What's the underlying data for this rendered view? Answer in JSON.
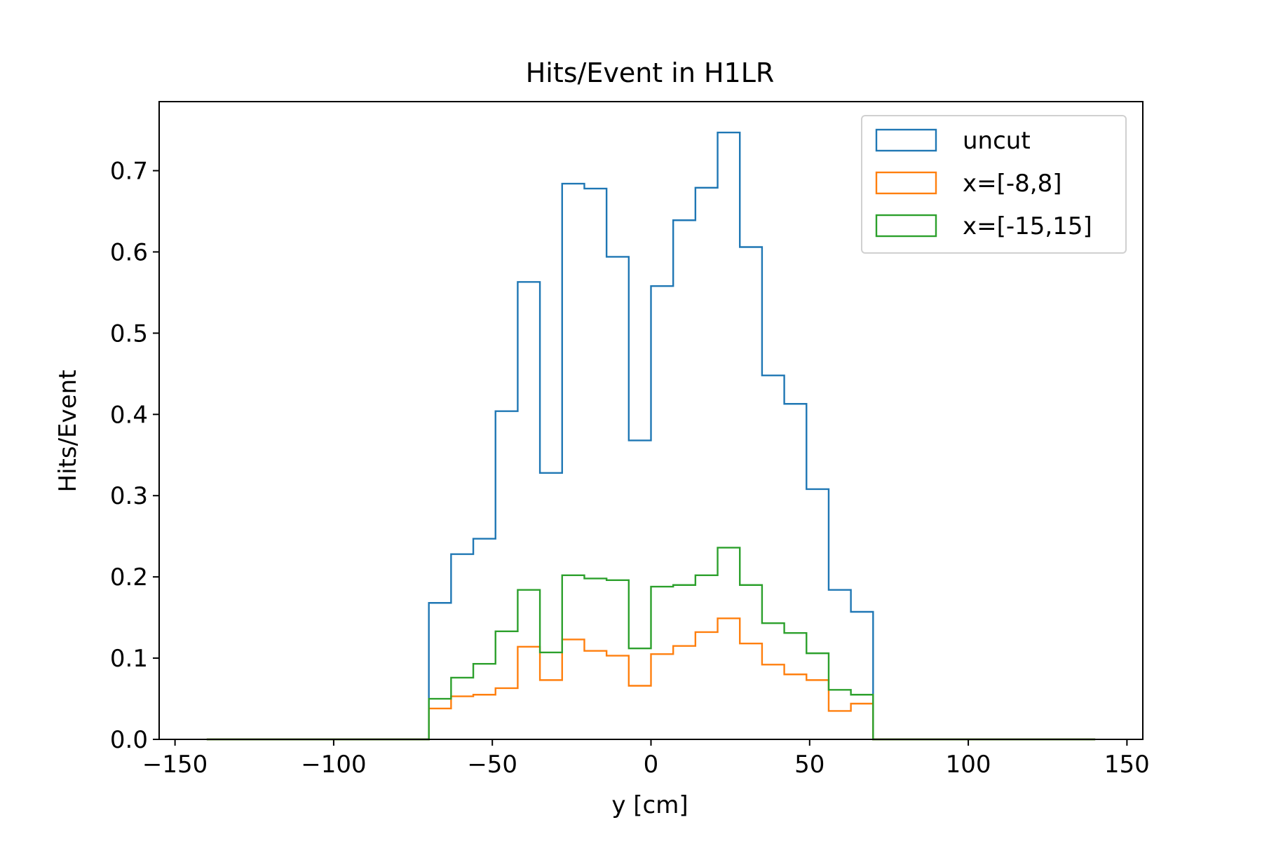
{
  "chart_data": {
    "type": "histogram",
    "title": "Hits/Event in H1LR",
    "xlabel": "y [cm]",
    "ylabel": "Hits/Event",
    "xlim": [
      -155,
      155
    ],
    "ylim": [
      0,
      0.785
    ],
    "xticks": [
      -150,
      -100,
      -50,
      0,
      50,
      100,
      150
    ],
    "xtick_labels": [
      "−150",
      "−100",
      "−50",
      "0",
      "50",
      "100",
      "150"
    ],
    "yticks": [
      0.0,
      0.1,
      0.2,
      0.3,
      0.4,
      0.5,
      0.6,
      0.7
    ],
    "ytick_labels": [
      "0.0",
      "0.1",
      "0.2",
      "0.3",
      "0.4",
      "0.5",
      "0.6",
      "0.7"
    ],
    "grid": false,
    "legend_position": "top-right",
    "bin_edges": [
      -140,
      -133,
      -126,
      -119,
      -112,
      -105,
      -98,
      -91,
      -84,
      -77,
      -70,
      -63,
      -56,
      -49,
      -42,
      -35,
      -28,
      -21,
      -14,
      -7,
      0,
      7,
      14,
      21,
      28,
      35,
      42,
      49,
      56,
      63,
      70,
      77,
      84,
      91,
      98,
      105,
      112,
      119,
      126,
      133,
      140
    ],
    "series": [
      {
        "name": "uncut",
        "color": "#1f77b4",
        "values": [
          0,
          0,
          0,
          0,
          0,
          0,
          0,
          0,
          0,
          0,
          0.168,
          0.228,
          0.247,
          0.404,
          0.563,
          0.328,
          0.684,
          0.678,
          0.594,
          0.368,
          0.558,
          0.639,
          0.679,
          0.747,
          0.606,
          0.448,
          0.413,
          0.308,
          0.184,
          0.157,
          0,
          0,
          0,
          0,
          0,
          0,
          0,
          0,
          0,
          0
        ]
      },
      {
        "name": "x=[-8,8]",
        "color": "#ff7f0e",
        "values": [
          0,
          0,
          0,
          0,
          0,
          0,
          0,
          0,
          0,
          0,
          0.038,
          0.053,
          0.055,
          0.063,
          0.114,
          0.073,
          0.123,
          0.109,
          0.103,
          0.066,
          0.105,
          0.115,
          0.132,
          0.149,
          0.118,
          0.092,
          0.08,
          0.073,
          0.035,
          0.044,
          0,
          0,
          0,
          0,
          0,
          0,
          0,
          0,
          0,
          0
        ]
      },
      {
        "name": "x=[-15,15]",
        "color": "#2ca02c",
        "values": [
          0,
          0,
          0,
          0,
          0,
          0,
          0,
          0,
          0,
          0,
          0.05,
          0.076,
          0.093,
          0.133,
          0.184,
          0.107,
          0.202,
          0.198,
          0.196,
          0.112,
          0.188,
          0.19,
          0.202,
          0.236,
          0.19,
          0.143,
          0.131,
          0.106,
          0.061,
          0.055,
          0,
          0,
          0,
          0,
          0,
          0,
          0,
          0,
          0,
          0
        ]
      }
    ]
  }
}
